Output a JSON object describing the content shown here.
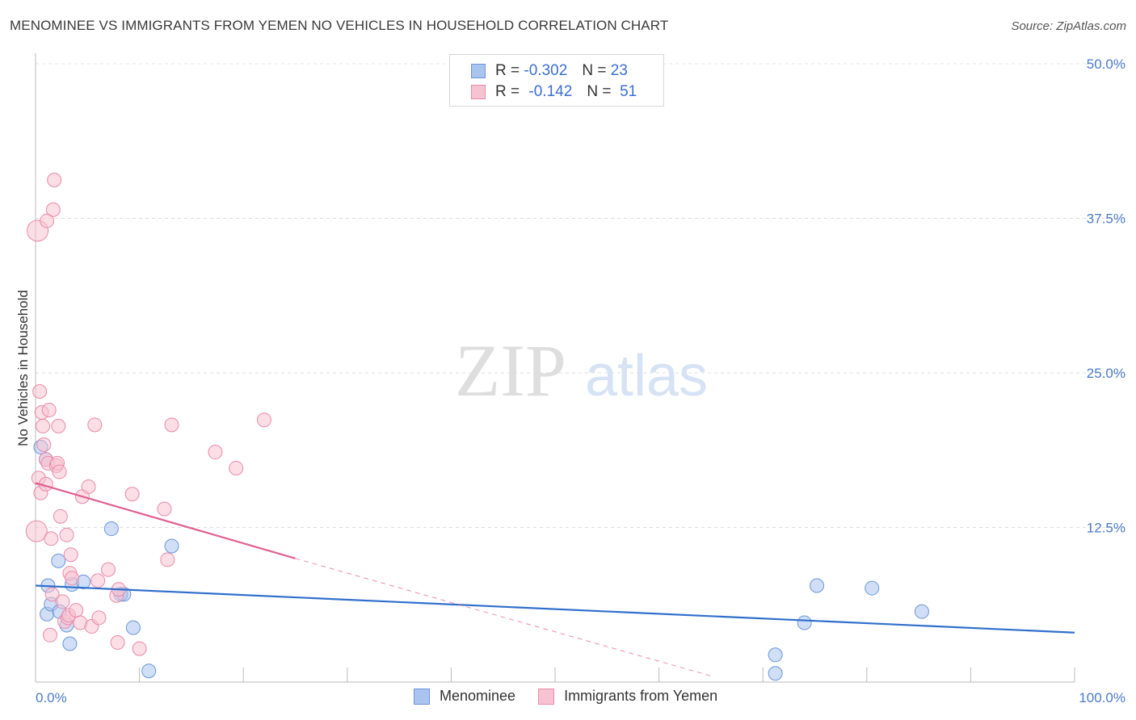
{
  "title": "MENOMINEE VS IMMIGRANTS FROM YEMEN NO VEHICLES IN HOUSEHOLD CORRELATION CHART",
  "source": "Source: ZipAtlas.com",
  "watermark": {
    "zip": "ZIP",
    "atlas": "atlas"
  },
  "legend": {
    "rows": [
      {
        "r_label": "R =",
        "r_value": "-0.302",
        "n_label": "N =",
        "n_value": "23",
        "color": "#a9c4ee",
        "border": "#6a96d8"
      },
      {
        "r_label": "R =",
        "r_value": "-0.142",
        "n_label": "N =",
        "n_value": "51",
        "color": "#f7c3d2",
        "border": "#e98aaa"
      }
    ]
  },
  "chart_data": {
    "type": "scatter",
    "title": "MENOMINEE VS IMMIGRANTS FROM YEMEN NO VEHICLES IN HOUSEHOLD CORRELATION CHART",
    "xlabel": "",
    "ylabel": "No Vehicles in Household",
    "xlim": [
      0,
      100
    ],
    "ylim": [
      0,
      50
    ],
    "x_tick_labels": [
      "0.0%",
      "100.0%"
    ],
    "y_ticks": [
      12.5,
      25.0,
      37.5,
      50.0
    ],
    "y_tick_labels": [
      "12.5%",
      "25.0%",
      "37.5%",
      "50.0%"
    ],
    "grid": true,
    "series": [
      {
        "name": "Menominee",
        "color": "#a9c4ee",
        "edge": "#6a96d8",
        "line_color": "#2f6fcc",
        "trend": {
          "x0": 0,
          "y0": 7.8,
          "x1": 100,
          "y1": 4.0
        },
        "points": [
          [
            0.5,
            19.0
          ],
          [
            1.0,
            18.0
          ],
          [
            1.1,
            5.5
          ],
          [
            1.2,
            7.8
          ],
          [
            1.5,
            6.3
          ],
          [
            2.2,
            9.8
          ],
          [
            2.3,
            5.7
          ],
          [
            3.0,
            4.6
          ],
          [
            3.3,
            3.1
          ],
          [
            3.5,
            7.9
          ],
          [
            4.6,
            8.1
          ],
          [
            7.3,
            12.4
          ],
          [
            8.2,
            7.1
          ],
          [
            8.5,
            7.1
          ],
          [
            9.4,
            4.4
          ],
          [
            10.9,
            0.9
          ],
          [
            13.1,
            11.0
          ],
          [
            71.2,
            0.7
          ],
          [
            71.2,
            2.2
          ],
          [
            74.0,
            4.8
          ],
          [
            75.2,
            7.8
          ],
          [
            80.5,
            7.6
          ],
          [
            85.3,
            5.7
          ]
        ]
      },
      {
        "name": "Immigrants from Yemen",
        "color": "#f7c3d2",
        "edge": "#e98aaa",
        "line_color": "#e06090",
        "trend": {
          "x0": 0,
          "y0": 16.1,
          "x1": 25,
          "y1": 10.0
        },
        "trend_dashed": {
          "x0": 25,
          "y0": 10.0,
          "x1": 65,
          "y1": 0.5
        },
        "points": [
          [
            0.2,
            36.5
          ],
          [
            0.1,
            12.2
          ],
          [
            0.3,
            16.5
          ],
          [
            0.4,
            23.5
          ],
          [
            0.5,
            15.3
          ],
          [
            0.6,
            21.8
          ],
          [
            0.7,
            20.7
          ],
          [
            0.8,
            19.2
          ],
          [
            1.0,
            18.0
          ],
          [
            1.0,
            16.0
          ],
          [
            1.1,
            37.3
          ],
          [
            1.2,
            17.7
          ],
          [
            1.3,
            22.0
          ],
          [
            1.4,
            3.8
          ],
          [
            1.5,
            11.6
          ],
          [
            1.6,
            7.1
          ],
          [
            1.7,
            38.2
          ],
          [
            1.8,
            40.6
          ],
          [
            2.0,
            17.5
          ],
          [
            2.1,
            17.7
          ],
          [
            2.2,
            20.7
          ],
          [
            2.3,
            17.0
          ],
          [
            2.4,
            13.4
          ],
          [
            2.6,
            6.5
          ],
          [
            2.8,
            4.9
          ],
          [
            3.0,
            11.9
          ],
          [
            3.1,
            5.2
          ],
          [
            3.2,
            5.4
          ],
          [
            3.3,
            8.8
          ],
          [
            3.4,
            10.3
          ],
          [
            3.5,
            8.4
          ],
          [
            3.9,
            5.8
          ],
          [
            4.3,
            4.8
          ],
          [
            4.5,
            15.0
          ],
          [
            5.1,
            15.8
          ],
          [
            5.4,
            4.5
          ],
          [
            5.7,
            20.8
          ],
          [
            6.0,
            8.2
          ],
          [
            6.1,
            5.2
          ],
          [
            7.0,
            9.1
          ],
          [
            7.9,
            3.2
          ],
          [
            7.8,
            7.0
          ],
          [
            8.0,
            7.5
          ],
          [
            9.3,
            15.2
          ],
          [
            10.0,
            2.7
          ],
          [
            12.4,
            14.0
          ],
          [
            12.7,
            9.9
          ],
          [
            13.1,
            20.8
          ],
          [
            17.3,
            18.6
          ],
          [
            19.3,
            17.3
          ],
          [
            22.0,
            21.2
          ]
        ]
      }
    ]
  }
}
